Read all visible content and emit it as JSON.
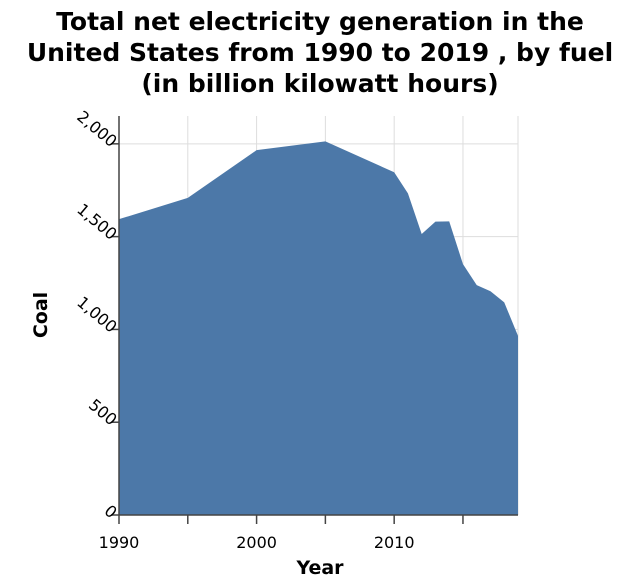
{
  "chart_data": {
    "type": "area",
    "title": "Total net electricity generation in the United States from 1990 to 2019 , by fuel (in billion kilowatt hours)",
    "title_lines": [
      "Total net electricity generation in the",
      "United States from 1990 to 2019 , by fuel",
      "(in billion kilowatt hours)"
    ],
    "xlabel": "Year",
    "ylabel": "Coal",
    "xlim": [
      1990,
      2019
    ],
    "ylim": [
      0,
      2150
    ],
    "x_ticks": [
      1990,
      1995,
      2000,
      2005,
      2010,
      2015
    ],
    "x_tick_labels": [
      "1990",
      "",
      "2000",
      "",
      "2010",
      ""
    ],
    "y_ticks": [
      0,
      500,
      1000,
      1500,
      2000
    ],
    "y_tick_labels": [
      "0",
      "500",
      "1,000",
      "1,500",
      "2,000"
    ],
    "grid": true,
    "color": "#4c78a8",
    "series": [
      {
        "x": [
          1990,
          1995,
          2000,
          2005,
          2010,
          2011,
          2012,
          2013,
          2014,
          2015,
          2016,
          2017,
          2018,
          2019
        ],
        "values": [
          1594,
          1709,
          1966,
          2013,
          1847,
          1733,
          1514,
          1581,
          1582,
          1352,
          1239,
          1206,
          1146,
          965
        ]
      }
    ]
  }
}
